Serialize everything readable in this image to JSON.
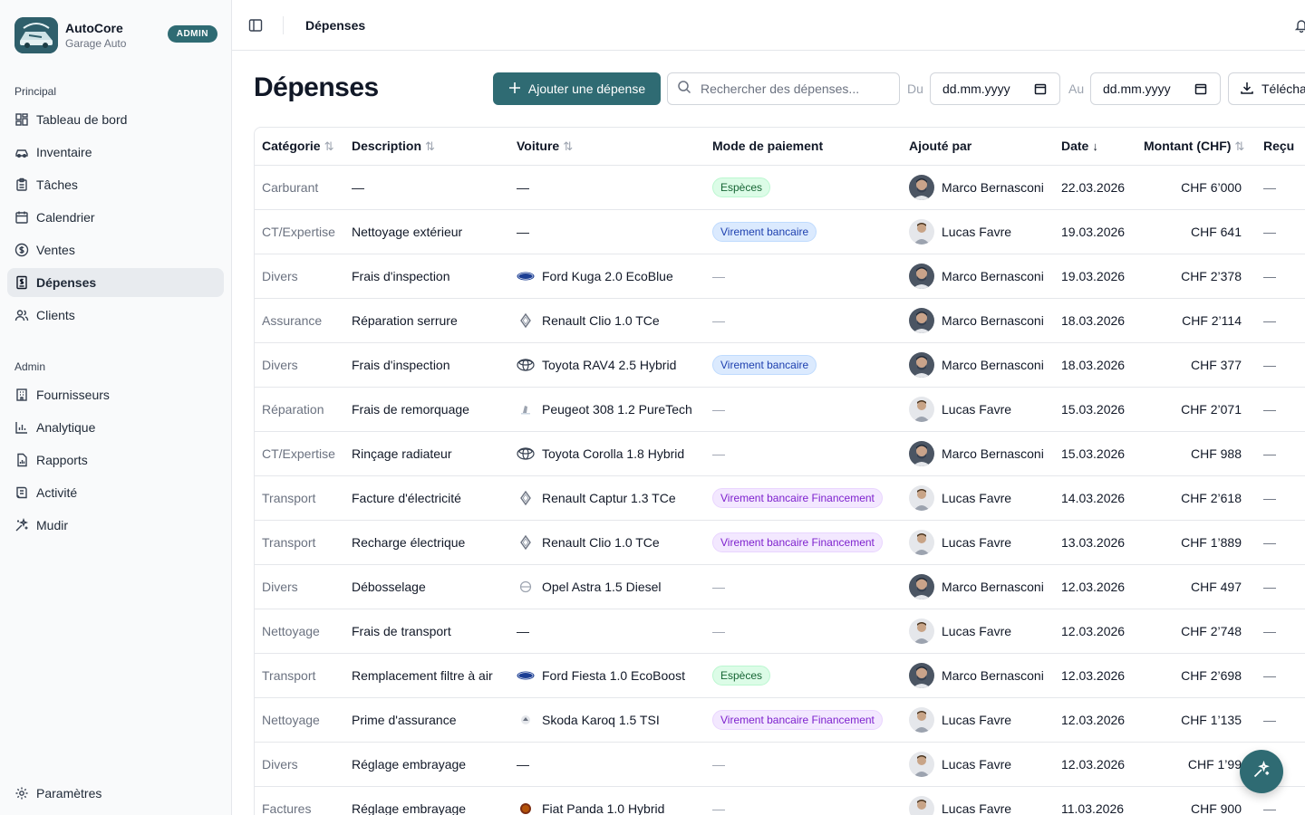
{
  "brand": {
    "name": "AutoCore",
    "subtitle": "Garage Auto",
    "badge": "ADMIN"
  },
  "sidebar": {
    "section_main": "Principal",
    "main_items": [
      {
        "label": "Tableau de bord",
        "icon": "dashboard-icon"
      },
      {
        "label": "Inventaire",
        "icon": "car-icon"
      },
      {
        "label": "Tâches",
        "icon": "clipboard-icon"
      },
      {
        "label": "Calendrier",
        "icon": "calendar-icon"
      },
      {
        "label": "Ventes",
        "icon": "dollar-circle-icon"
      },
      {
        "label": "Dépenses",
        "icon": "receipt-icon",
        "active": true
      },
      {
        "label": "Clients",
        "icon": "users-icon"
      }
    ],
    "section_admin": "Admin",
    "admin_items": [
      {
        "label": "Fournisseurs",
        "icon": "building-icon"
      },
      {
        "label": "Analytique",
        "icon": "bar-chart-icon"
      },
      {
        "label": "Rapports",
        "icon": "file-chart-icon"
      },
      {
        "label": "Activité",
        "icon": "activity-log-icon"
      },
      {
        "label": "Mudir",
        "icon": "sparkles-icon"
      }
    ],
    "settings": "Paramètres"
  },
  "topbar": {
    "breadcrumb": "Dépenses"
  },
  "page": {
    "title": "Dépenses",
    "add_button": "Ajouter une dépense",
    "search_placeholder": "Rechercher des dépenses...",
    "from_label": "Du",
    "to_label": "Au",
    "date_placeholder": "dd.mm.yyyy",
    "download_label": "Télécharger"
  },
  "table": {
    "columns": [
      "Catégorie",
      "Description",
      "Voiture",
      "Mode de paiement",
      "Ajouté par",
      "Date",
      "Montant (CHF)",
      "Reçu"
    ],
    "rows": [
      {
        "category": "Carburant",
        "description": "—",
        "car": "—",
        "car_brand": "",
        "payment": "Espèces",
        "payment_type": "cash",
        "user": "Marco Bernasconi",
        "date": "22.03.2026",
        "amount": "CHF 6’000",
        "receipt": "—"
      },
      {
        "category": "CT/Expertise",
        "description": "Nettoyage extérieur",
        "car": "—",
        "car_brand": "",
        "payment": "Virement bancaire",
        "payment_type": "bank",
        "user": "Lucas Favre",
        "date": "19.03.2026",
        "amount": "CHF 641",
        "receipt": "—"
      },
      {
        "category": "Divers",
        "description": "Frais d'inspection",
        "car": "Ford Kuga 2.0 EcoBlue",
        "car_brand": "ford",
        "payment": "—",
        "payment_type": "none",
        "user": "Marco Bernasconi",
        "date": "19.03.2026",
        "amount": "CHF 2’378",
        "receipt": "—"
      },
      {
        "category": "Assurance",
        "description": "Réparation serrure",
        "car": "Renault Clio 1.0 TCe",
        "car_brand": "renault",
        "payment": "—",
        "payment_type": "none",
        "user": "Marco Bernasconi",
        "date": "18.03.2026",
        "amount": "CHF 2’114",
        "receipt": "—"
      },
      {
        "category": "Divers",
        "description": "Frais d'inspection",
        "car": "Toyota RAV4 2.5 Hybrid",
        "car_brand": "toyota",
        "payment": "Virement bancaire",
        "payment_type": "bank",
        "user": "Marco Bernasconi",
        "date": "18.03.2026",
        "amount": "CHF 377",
        "receipt": "—"
      },
      {
        "category": "Réparation",
        "description": "Frais de remorquage",
        "car": "Peugeot 308 1.2 PureTech",
        "car_brand": "peugeot",
        "payment": "—",
        "payment_type": "none",
        "user": "Lucas Favre",
        "date": "15.03.2026",
        "amount": "CHF 2’071",
        "receipt": "—"
      },
      {
        "category": "CT/Expertise",
        "description": "Rinçage radiateur",
        "car": "Toyota Corolla 1.8 Hybrid",
        "car_brand": "toyota",
        "payment": "—",
        "payment_type": "none",
        "user": "Marco Bernasconi",
        "date": "15.03.2026",
        "amount": "CHF 988",
        "receipt": "—"
      },
      {
        "category": "Transport",
        "description": "Facture d'électricité",
        "car": "Renault Captur 1.3 TCe",
        "car_brand": "renault",
        "payment": "Virement bancaire Financement",
        "payment_type": "fin",
        "user": "Lucas Favre",
        "date": "14.03.2026",
        "amount": "CHF 2’618",
        "receipt": "—"
      },
      {
        "category": "Transport",
        "description": "Recharge électrique",
        "car": "Renault Clio 1.0 TCe",
        "car_brand": "renault",
        "payment": "Virement bancaire Financement",
        "payment_type": "fin",
        "user": "Lucas Favre",
        "date": "13.03.2026",
        "amount": "CHF 1’889",
        "receipt": "—"
      },
      {
        "category": "Divers",
        "description": "Débosselage",
        "car": "Opel Astra 1.5 Diesel",
        "car_brand": "opel",
        "payment": "—",
        "payment_type": "none",
        "user": "Marco Bernasconi",
        "date": "12.03.2026",
        "amount": "CHF 497",
        "receipt": "—"
      },
      {
        "category": "Nettoyage",
        "description": "Frais de transport",
        "car": "—",
        "car_brand": "",
        "payment": "—",
        "payment_type": "none",
        "user": "Lucas Favre",
        "date": "12.03.2026",
        "amount": "CHF 2’748",
        "receipt": "—"
      },
      {
        "category": "Transport",
        "description": "Remplacement filtre à air",
        "car": "Ford Fiesta 1.0 EcoBoost",
        "car_brand": "ford",
        "payment": "Espèces",
        "payment_type": "cash",
        "user": "Marco Bernasconi",
        "date": "12.03.2026",
        "amount": "CHF 2’698",
        "receipt": "—"
      },
      {
        "category": "Nettoyage",
        "description": "Prime d'assurance",
        "car": "Skoda Karoq 1.5 TSI",
        "car_brand": "skoda",
        "payment": "Virement bancaire Financement",
        "payment_type": "fin",
        "user": "Lucas Favre",
        "date": "12.03.2026",
        "amount": "CHF 1’135",
        "receipt": "—"
      },
      {
        "category": "Divers",
        "description": "Réglage embrayage",
        "car": "—",
        "car_brand": "",
        "payment": "—",
        "payment_type": "none",
        "user": "Lucas Favre",
        "date": "12.03.2026",
        "amount": "CHF 1’99",
        "receipt": "—"
      },
      {
        "category": "Factures",
        "description": "Réglage embrayage",
        "car": "Fiat Panda 1.0 Hybrid",
        "car_brand": "fiat",
        "payment": "—",
        "payment_type": "none",
        "user": "Lucas Favre",
        "date": "11.03.2026",
        "amount": "CHF 900",
        "receipt": "—"
      }
    ]
  }
}
